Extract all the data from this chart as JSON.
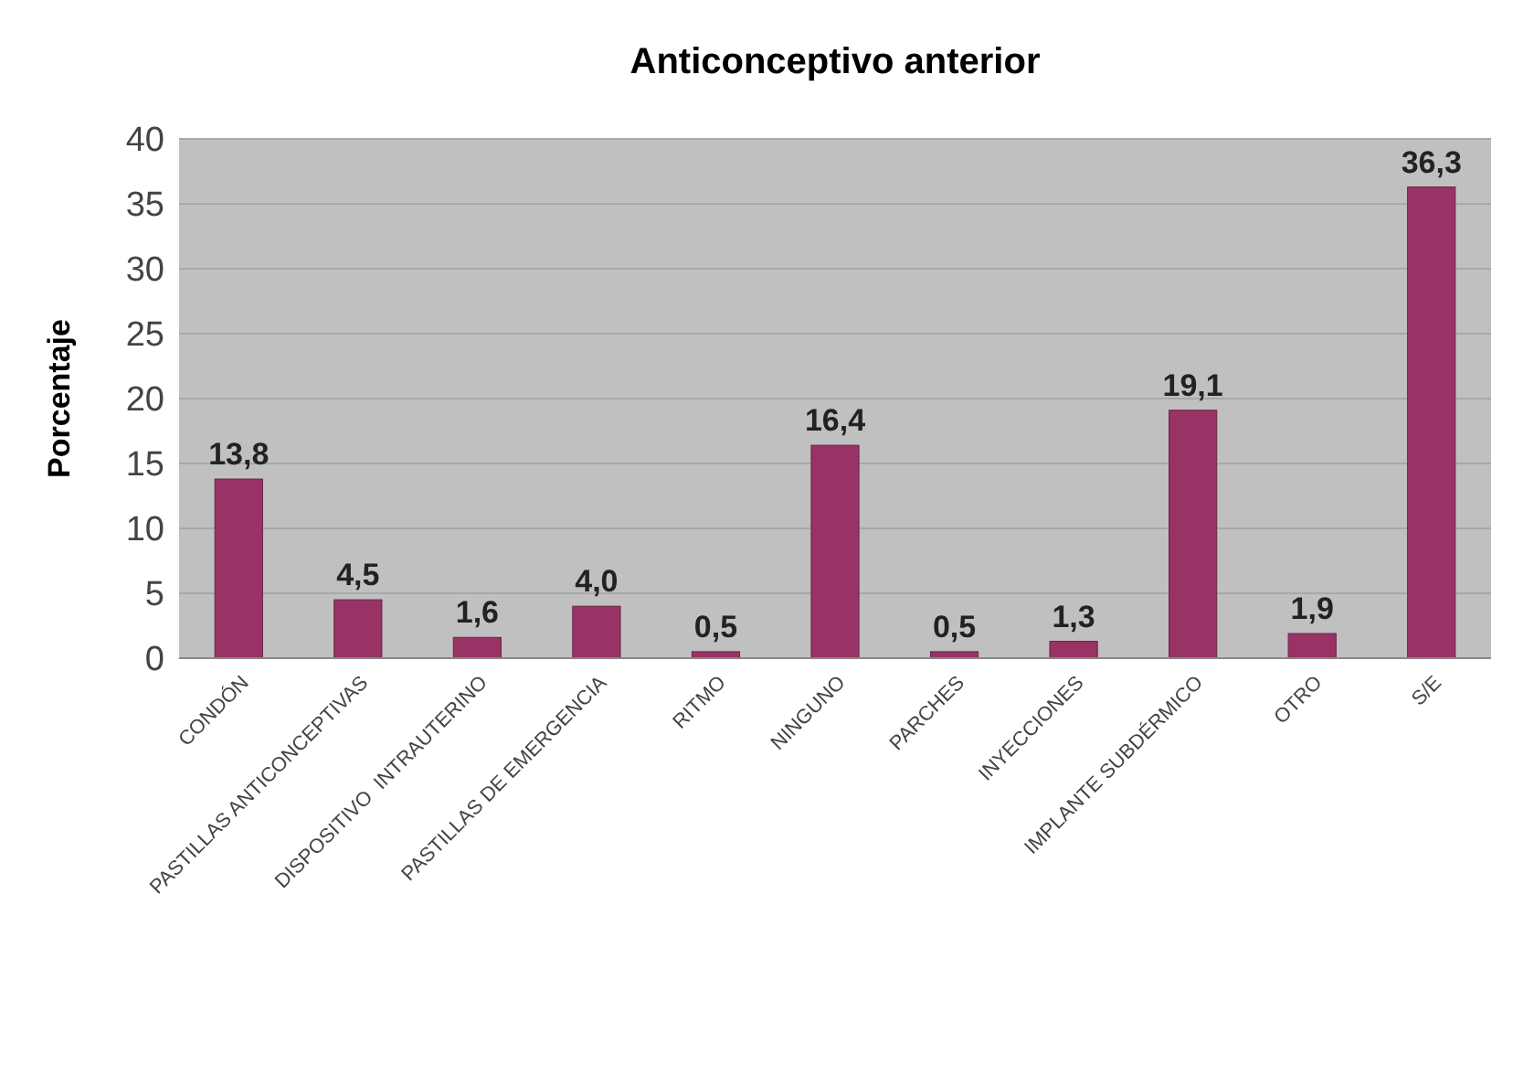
{
  "chart_data": {
    "type": "bar",
    "title": "Anticonceptivo anterior",
    "ylabel": "Porcentaje",
    "categories": [
      "CONDÓN",
      "PASTILLAS ANTICONCEPTIVAS",
      "DISPOSITIVO  INTRAUTERINO",
      "PASTILLAS DE EMERGENCIA",
      "RITMO",
      "NINGUNO",
      "PARCHES",
      "INYECCIONES",
      "IMPLANTE SUBDÉRMICO",
      "OTRO",
      "S/E"
    ],
    "values": [
      13.8,
      4.5,
      1.6,
      4.0,
      0.5,
      16.4,
      0.5,
      1.3,
      19.1,
      1.9,
      36.3
    ],
    "value_labels": [
      "13,8",
      "4,5",
      "1,6",
      "4,0",
      "0,5",
      "16,4",
      "0,5",
      "1,3",
      "19,1",
      "1,9",
      "36,3"
    ],
    "color": "#993366",
    "ylim": [
      0,
      40
    ],
    "yticks": [
      0,
      5,
      10,
      15,
      20,
      25,
      30,
      35,
      40
    ],
    "grid": "y"
  }
}
